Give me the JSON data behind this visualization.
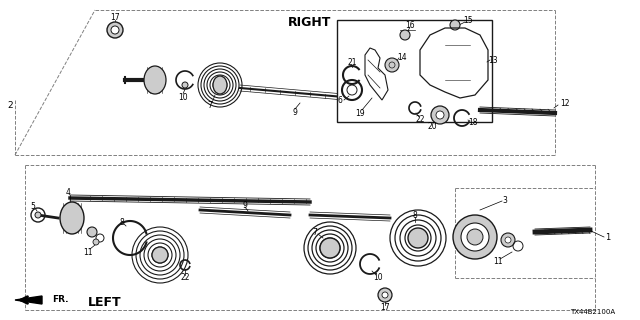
{
  "bg_color": "#ffffff",
  "fig_width": 6.4,
  "fig_height": 3.2,
  "dpi": 100,
  "right_label": "RIGHT",
  "left_label": "LEFT",
  "fr_label": "FR.",
  "diagram_code": "TX44B2100A",
  "line_color": "#1a1a1a",
  "gray_fill": "#aaaaaa",
  "light_gray": "#cccccc",
  "dark_gray": "#555555"
}
